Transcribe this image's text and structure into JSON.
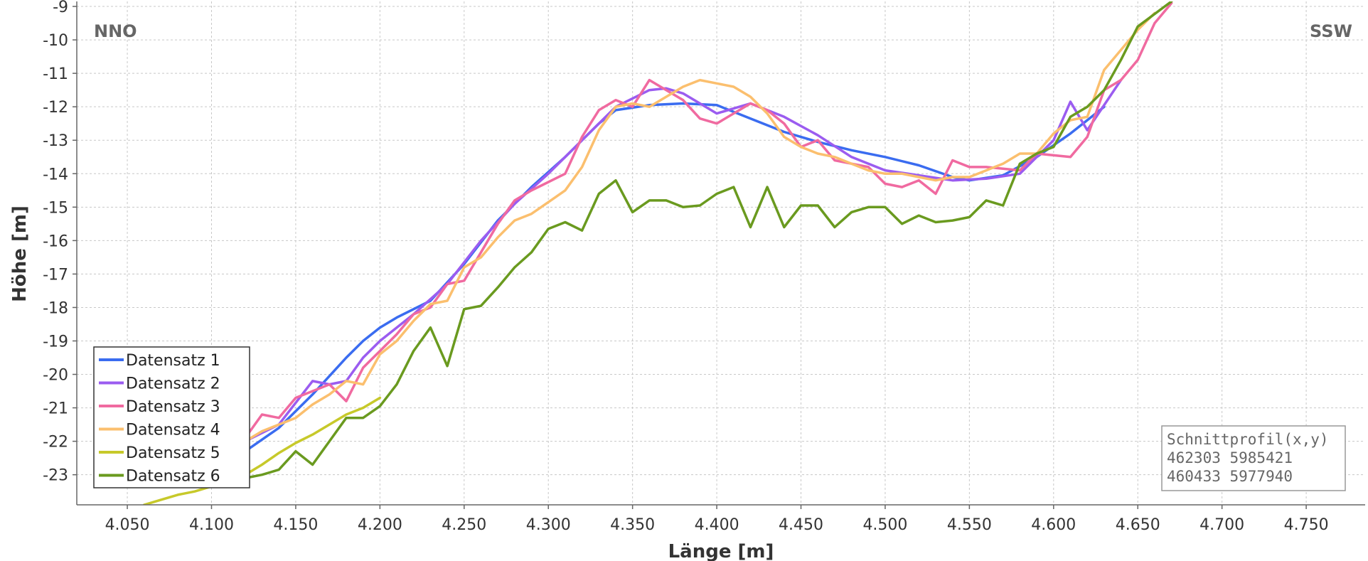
{
  "chart_data": {
    "type": "line",
    "xlabel": "Länge [m]",
    "ylabel": "Höhe [m]",
    "xlim": [
      4.02,
      4.785
    ],
    "ylim": [
      -23.9,
      -8.85
    ],
    "x_ticks": [
      "4.050",
      "4.100",
      "4.150",
      "4.200",
      "4.250",
      "4.300",
      "4.350",
      "4.400",
      "4.450",
      "4.500",
      "4.550",
      "4.600",
      "4.650",
      "4.700",
      "4.750"
    ],
    "y_ticks": [
      "-9",
      "-10",
      "-11",
      "-12",
      "-13",
      "-14",
      "-15",
      "-16",
      "-17",
      "-18",
      "-19",
      "-20",
      "-21",
      "-22",
      "-23"
    ],
    "grid": true,
    "legend_position": "bottom-left",
    "corner_left": "NNO",
    "corner_right": "SSW",
    "info_box": {
      "title": "Schnittprofil(x,y)",
      "line1": "462303 5985421",
      "line2": "460433 5977940"
    },
    "series": [
      {
        "name": "Datensatz 1",
        "color": "#3a6cf0",
        "points": [
          [
            4.1,
            -23.0
          ],
          [
            4.12,
            -22.3
          ],
          [
            4.14,
            -21.6
          ],
          [
            4.16,
            -20.6
          ],
          [
            4.18,
            -19.5
          ],
          [
            4.19,
            -19.0
          ],
          [
            4.2,
            -18.6
          ],
          [
            4.21,
            -18.3
          ],
          [
            4.23,
            -17.8
          ],
          [
            4.25,
            -16.7
          ],
          [
            4.27,
            -15.4
          ],
          [
            4.29,
            -14.4
          ],
          [
            4.31,
            -13.5
          ],
          [
            4.33,
            -12.5
          ],
          [
            4.34,
            -12.1
          ],
          [
            4.36,
            -11.95
          ],
          [
            4.38,
            -11.9
          ],
          [
            4.4,
            -11.95
          ],
          [
            4.42,
            -12.35
          ],
          [
            4.44,
            -12.75
          ],
          [
            4.46,
            -13.05
          ],
          [
            4.48,
            -13.3
          ],
          [
            4.5,
            -13.5
          ],
          [
            4.52,
            -13.75
          ],
          [
            4.54,
            -14.1
          ],
          [
            4.55,
            -14.2
          ],
          [
            4.57,
            -14.05
          ],
          [
            4.59,
            -13.5
          ],
          [
            4.61,
            -12.8
          ],
          [
            4.63,
            -12.0
          ]
        ]
      },
      {
        "name": "Datensatz 2",
        "color": "#9b5cf0",
        "points": [
          [
            4.1,
            -22.8
          ],
          [
            4.12,
            -22.0
          ],
          [
            4.14,
            -21.5
          ],
          [
            4.16,
            -20.2
          ],
          [
            4.17,
            -20.3
          ],
          [
            4.18,
            -20.2
          ],
          [
            4.19,
            -19.5
          ],
          [
            4.2,
            -19.0
          ],
          [
            4.22,
            -18.2
          ],
          [
            4.24,
            -17.3
          ],
          [
            4.26,
            -16.0
          ],
          [
            4.28,
            -14.9
          ],
          [
            4.3,
            -14.0
          ],
          [
            4.32,
            -13.0
          ],
          [
            4.34,
            -12.0
          ],
          [
            4.36,
            -11.5
          ],
          [
            4.37,
            -11.45
          ],
          [
            4.38,
            -11.6
          ],
          [
            4.4,
            -12.2
          ],
          [
            4.42,
            -11.9
          ],
          [
            4.44,
            -12.3
          ],
          [
            4.46,
            -12.85
          ],
          [
            4.48,
            -13.5
          ],
          [
            4.5,
            -13.9
          ],
          [
            4.52,
            -14.05
          ],
          [
            4.54,
            -14.2
          ],
          [
            4.56,
            -14.15
          ],
          [
            4.58,
            -14.0
          ],
          [
            4.6,
            -13.0
          ],
          [
            4.61,
            -11.85
          ],
          [
            4.62,
            -12.7
          ],
          [
            4.64,
            -11.2
          ]
        ]
      },
      {
        "name": "Datensatz 3",
        "color": "#f06aa0",
        "points": [
          [
            4.11,
            -22.2
          ],
          [
            4.12,
            -21.9
          ],
          [
            4.13,
            -21.2
          ],
          [
            4.14,
            -21.3
          ],
          [
            4.15,
            -20.7
          ],
          [
            4.16,
            -20.5
          ],
          [
            4.17,
            -20.3
          ],
          [
            4.18,
            -20.8
          ],
          [
            4.19,
            -19.8
          ],
          [
            4.2,
            -19.3
          ],
          [
            4.21,
            -18.8
          ],
          [
            4.22,
            -18.2
          ],
          [
            4.23,
            -18.0
          ],
          [
            4.24,
            -17.3
          ],
          [
            4.25,
            -17.2
          ],
          [
            4.27,
            -15.5
          ],
          [
            4.28,
            -14.8
          ],
          [
            4.29,
            -14.5
          ],
          [
            4.31,
            -14.0
          ],
          [
            4.32,
            -12.9
          ],
          [
            4.33,
            -12.1
          ],
          [
            4.34,
            -11.8
          ],
          [
            4.35,
            -12.0
          ],
          [
            4.36,
            -11.2
          ],
          [
            4.37,
            -11.5
          ],
          [
            4.38,
            -11.8
          ],
          [
            4.39,
            -12.35
          ],
          [
            4.4,
            -12.5
          ],
          [
            4.41,
            -12.2
          ],
          [
            4.42,
            -11.9
          ],
          [
            4.43,
            -12.1
          ],
          [
            4.44,
            -12.5
          ],
          [
            4.45,
            -13.2
          ],
          [
            4.46,
            -13.0
          ],
          [
            4.47,
            -13.6
          ],
          [
            4.48,
            -13.7
          ],
          [
            4.49,
            -13.8
          ],
          [
            4.5,
            -14.3
          ],
          [
            4.51,
            -14.4
          ],
          [
            4.52,
            -14.2
          ],
          [
            4.53,
            -14.6
          ],
          [
            4.54,
            -13.6
          ],
          [
            4.55,
            -13.8
          ],
          [
            4.56,
            -13.8
          ],
          [
            4.58,
            -13.9
          ],
          [
            4.59,
            -13.4
          ],
          [
            4.61,
            -13.5
          ],
          [
            4.62,
            -12.9
          ],
          [
            4.63,
            -11.5
          ],
          [
            4.64,
            -11.2
          ],
          [
            4.65,
            -10.6
          ],
          [
            4.66,
            -9.5
          ],
          [
            4.67,
            -8.9
          ]
        ]
      },
      {
        "name": "Datensatz 4",
        "color": "#fbbf6e",
        "points": [
          [
            4.12,
            -22.0
          ],
          [
            4.13,
            -21.7
          ],
          [
            4.14,
            -21.5
          ],
          [
            4.15,
            -21.3
          ],
          [
            4.16,
            -20.9
          ],
          [
            4.17,
            -20.6
          ],
          [
            4.18,
            -20.2
          ],
          [
            4.19,
            -20.3
          ],
          [
            4.2,
            -19.4
          ],
          [
            4.21,
            -19.0
          ],
          [
            4.22,
            -18.4
          ],
          [
            4.23,
            -17.9
          ],
          [
            4.24,
            -17.8
          ],
          [
            4.25,
            -16.8
          ],
          [
            4.26,
            -16.5
          ],
          [
            4.27,
            -15.9
          ],
          [
            4.28,
            -15.4
          ],
          [
            4.29,
            -15.2
          ],
          [
            4.3,
            -14.85
          ],
          [
            4.31,
            -14.5
          ],
          [
            4.32,
            -13.8
          ],
          [
            4.33,
            -12.7
          ],
          [
            4.34,
            -12.0
          ],
          [
            4.35,
            -11.9
          ],
          [
            4.36,
            -12.0
          ],
          [
            4.37,
            -11.7
          ],
          [
            4.38,
            -11.4
          ],
          [
            4.39,
            -11.2
          ],
          [
            4.4,
            -11.3
          ],
          [
            4.41,
            -11.4
          ],
          [
            4.42,
            -11.7
          ],
          [
            4.43,
            -12.2
          ],
          [
            4.44,
            -12.9
          ],
          [
            4.45,
            -13.2
          ],
          [
            4.46,
            -13.4
          ],
          [
            4.47,
            -13.5
          ],
          [
            4.48,
            -13.7
          ],
          [
            4.49,
            -13.9
          ],
          [
            4.5,
            -14.0
          ],
          [
            4.51,
            -14.0
          ],
          [
            4.52,
            -14.1
          ],
          [
            4.53,
            -14.2
          ],
          [
            4.54,
            -14.1
          ],
          [
            4.55,
            -14.1
          ],
          [
            4.56,
            -13.9
          ],
          [
            4.57,
            -13.7
          ],
          [
            4.58,
            -13.4
          ],
          [
            4.59,
            -13.4
          ],
          [
            4.6,
            -12.8
          ],
          [
            4.61,
            -12.4
          ],
          [
            4.62,
            -12.3
          ],
          [
            4.63,
            -10.9
          ],
          [
            4.64,
            -10.3
          ],
          [
            4.65,
            -9.7
          ],
          [
            4.66,
            -9.2
          ]
        ]
      },
      {
        "name": "Datensatz 5",
        "color": "#c7c92a",
        "points": [
          [
            4.06,
            -23.9
          ],
          [
            4.07,
            -23.75
          ],
          [
            4.08,
            -23.6
          ],
          [
            4.09,
            -23.5
          ],
          [
            4.1,
            -23.35
          ],
          [
            4.11,
            -23.15
          ],
          [
            4.12,
            -23.0
          ],
          [
            4.13,
            -22.7
          ],
          [
            4.14,
            -22.35
          ],
          [
            4.15,
            -22.05
          ],
          [
            4.16,
            -21.8
          ],
          [
            4.17,
            -21.5
          ],
          [
            4.18,
            -21.2
          ],
          [
            4.19,
            -21.0
          ],
          [
            4.2,
            -20.7
          ]
        ]
      },
      {
        "name": "Datensatz 6",
        "color": "#6a9a1f",
        "points": [
          [
            4.11,
            -23.2
          ],
          [
            4.12,
            -23.1
          ],
          [
            4.13,
            -23.0
          ],
          [
            4.14,
            -22.85
          ],
          [
            4.15,
            -22.3
          ],
          [
            4.16,
            -22.7
          ],
          [
            4.17,
            -22.0
          ],
          [
            4.18,
            -21.3
          ],
          [
            4.19,
            -21.3
          ],
          [
            4.2,
            -20.95
          ],
          [
            4.21,
            -20.3
          ],
          [
            4.22,
            -19.3
          ],
          [
            4.23,
            -18.6
          ],
          [
            4.24,
            -19.75
          ],
          [
            4.25,
            -18.05
          ],
          [
            4.26,
            -17.95
          ],
          [
            4.27,
            -17.4
          ],
          [
            4.28,
            -16.8
          ],
          [
            4.29,
            -16.35
          ],
          [
            4.3,
            -15.65
          ],
          [
            4.31,
            -15.45
          ],
          [
            4.32,
            -15.7
          ],
          [
            4.33,
            -14.6
          ],
          [
            4.34,
            -14.2
          ],
          [
            4.35,
            -15.15
          ],
          [
            4.36,
            -14.8
          ],
          [
            4.37,
            -14.8
          ],
          [
            4.38,
            -15.0
          ],
          [
            4.39,
            -14.95
          ],
          [
            4.4,
            -14.6
          ],
          [
            4.41,
            -14.4
          ],
          [
            4.42,
            -15.6
          ],
          [
            4.43,
            -14.4
          ],
          [
            4.44,
            -15.6
          ],
          [
            4.45,
            -14.95
          ],
          [
            4.46,
            -14.95
          ],
          [
            4.47,
            -15.6
          ],
          [
            4.48,
            -15.15
          ],
          [
            4.49,
            -15.0
          ],
          [
            4.5,
            -15.0
          ],
          [
            4.51,
            -15.5
          ],
          [
            4.52,
            -15.25
          ],
          [
            4.53,
            -15.45
          ],
          [
            4.54,
            -15.4
          ],
          [
            4.55,
            -15.3
          ],
          [
            4.56,
            -14.8
          ],
          [
            4.57,
            -14.95
          ],
          [
            4.58,
            -13.7
          ],
          [
            4.59,
            -13.4
          ],
          [
            4.6,
            -13.2
          ],
          [
            4.61,
            -12.3
          ],
          [
            4.62,
            -12.0
          ],
          [
            4.63,
            -11.5
          ],
          [
            4.64,
            -10.6
          ],
          [
            4.65,
            -9.6
          ],
          [
            4.67,
            -8.85
          ]
        ]
      }
    ]
  }
}
